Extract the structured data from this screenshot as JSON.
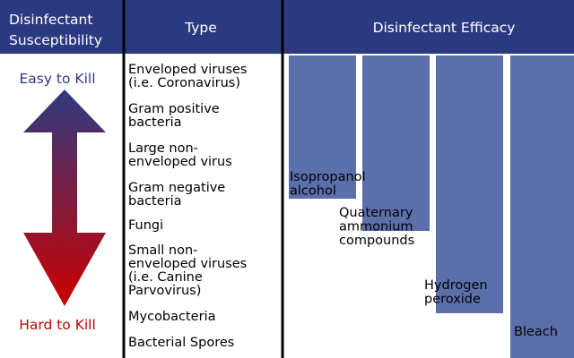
{
  "header": {
    "susceptibility": [
      "Disinfectant",
      "Susceptibility"
    ],
    "type": "Type",
    "efficacy": "Disinfectant Efficacy"
  },
  "scale": {
    "top": "Easy to Kill",
    "bottom": "Hard to Kill"
  },
  "types": [
    [
      "Enveloped viruses",
      "(i.e. Coronavirus)"
    ],
    [
      "Gram positive",
      "bacteria"
    ],
    [
      "Large non-",
      "enveloped virus"
    ],
    [
      "Gram negative",
      "bacteria"
    ],
    [
      "Fungi"
    ],
    [
      "Small non-",
      "enveloped viruses",
      "(i.e. Canine",
      "Parvovirus)"
    ],
    [
      "Mycobacteria"
    ],
    [
      "Bacterial Spores"
    ]
  ],
  "disinfectants": [
    [
      "Isopropanol",
      "alcohol"
    ],
    [
      "Quaternary",
      "ammonium",
      "compounds"
    ],
    [
      "Hydrogen",
      "peroxide"
    ],
    [
      "Bleach"
    ]
  ]
}
